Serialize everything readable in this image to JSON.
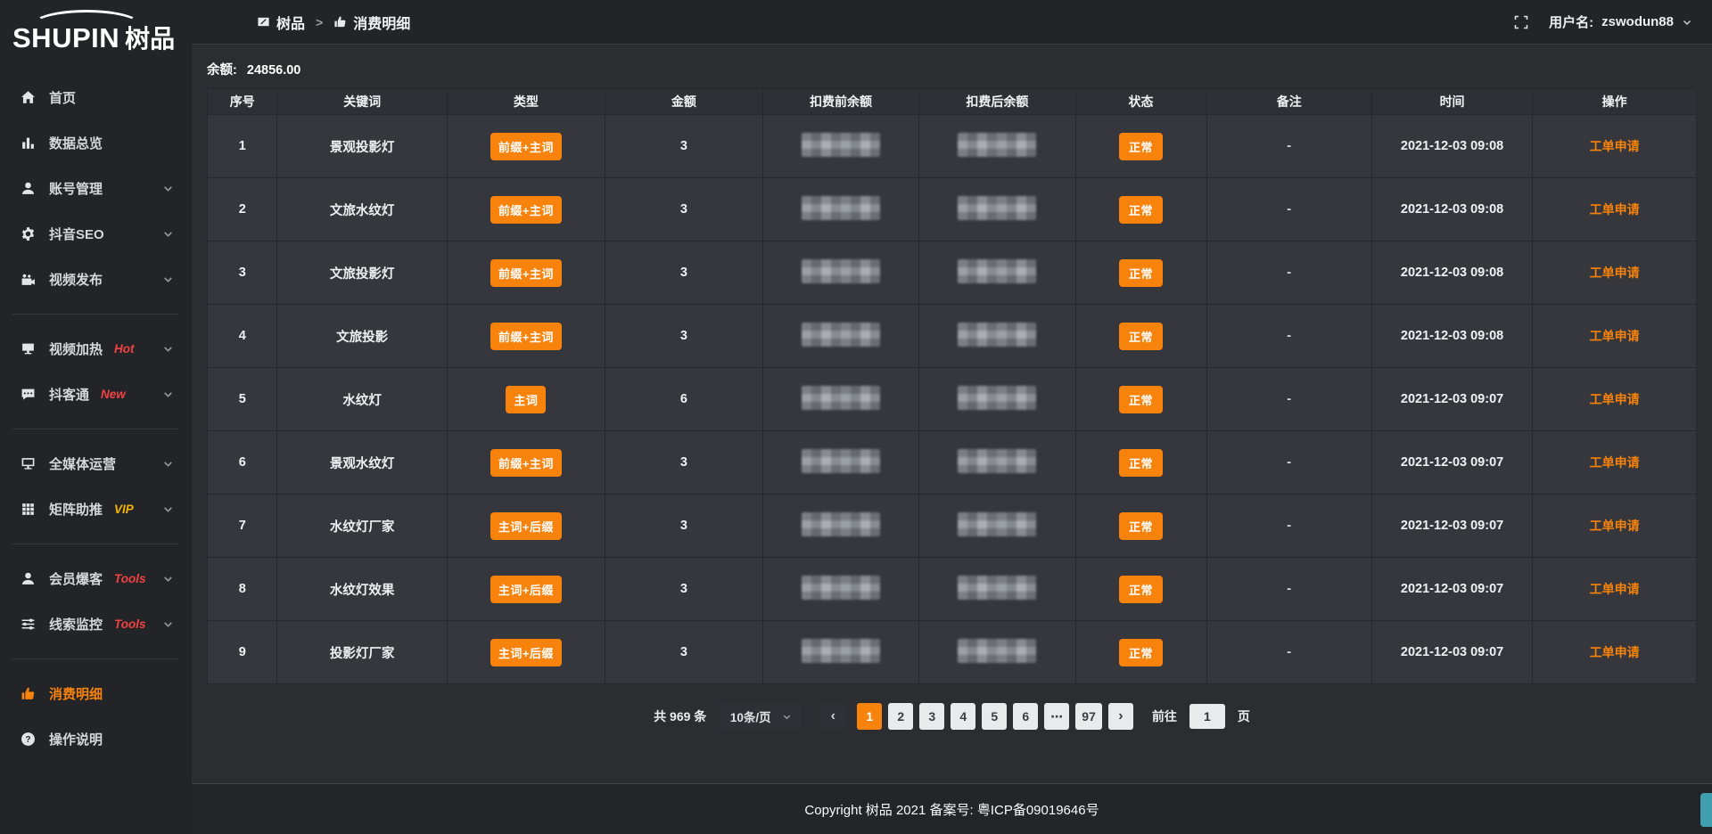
{
  "sidebar": {
    "logo_en": "SHUPIN",
    "logo_cn": "树品",
    "items": [
      {
        "id": "home",
        "icon": "home",
        "label": "首页"
      },
      {
        "id": "data-overview",
        "icon": "bar-chart",
        "label": "数据总览"
      },
      {
        "id": "account-management",
        "icon": "user",
        "label": "账号管理",
        "chevron": true
      },
      {
        "id": "douyin-seo",
        "icon": "gear",
        "label": "抖音SEO",
        "chevron": true
      },
      {
        "id": "video-publish",
        "icon": "video-camera",
        "label": "视频发布",
        "chevron": true
      },
      {
        "divider": true
      },
      {
        "id": "video-heat",
        "icon": "screen",
        "label": "视频加热",
        "badge": "Hot",
        "badge_color": "#f24242",
        "chevron": true
      },
      {
        "id": "douketong",
        "icon": "chat",
        "label": "抖客通",
        "badge": "New",
        "badge_color": "#f24242",
        "chevron": true
      },
      {
        "divider": true
      },
      {
        "id": "media-operation",
        "icon": "monitor",
        "label": "全媒体运营",
        "chevron": true
      },
      {
        "id": "matrix-boost",
        "icon": "grid",
        "label": "矩阵助推",
        "badge": "VIP",
        "badge_color": "#f7b500",
        "chevron": true
      },
      {
        "divider": true
      },
      {
        "id": "member-leads",
        "icon": "user-solid",
        "label": "会员爆客",
        "badge": "Tools",
        "badge_color": "#f24242",
        "chevron": true
      },
      {
        "id": "clue-monitor",
        "icon": "sliders",
        "label": "线索监控",
        "badge": "Tools",
        "badge_color": "#f24242",
        "chevron": true
      },
      {
        "divider": true
      },
      {
        "id": "consumption-details",
        "icon": "thumbs-up",
        "label": "消费明细",
        "active": true
      },
      {
        "id": "instructions",
        "icon": "question",
        "label": "操作说明"
      }
    ]
  },
  "topbar": {
    "breadcrumb": [
      "树品",
      "消费明细"
    ],
    "separator": ">",
    "username_label": "用户名:",
    "username": "zswodun88"
  },
  "balance": {
    "label": "余额:",
    "value": "24856.00"
  },
  "table": {
    "columns": [
      "序号",
      "关键词",
      "类型",
      "金额",
      "扣费前余额",
      "扣费后余额",
      "状态",
      "备注",
      "时间",
      "操作"
    ],
    "rows": [
      {
        "seq": "1",
        "keyword": "景观投影灯",
        "type": "前缀+主词",
        "amount": "3",
        "status": "正常",
        "remark": "-",
        "time": "2021-12-03 09:08",
        "action": "工单申请"
      },
      {
        "seq": "2",
        "keyword": "文旅水纹灯",
        "type": "前缀+主词",
        "amount": "3",
        "status": "正常",
        "remark": "-",
        "time": "2021-12-03 09:08",
        "action": "工单申请"
      },
      {
        "seq": "3",
        "keyword": "文旅投影灯",
        "type": "前缀+主词",
        "amount": "3",
        "status": "正常",
        "remark": "-",
        "time": "2021-12-03 09:08",
        "action": "工单申请"
      },
      {
        "seq": "4",
        "keyword": "文旅投影",
        "type": "前缀+主词",
        "amount": "3",
        "status": "正常",
        "remark": "-",
        "time": "2021-12-03 09:08",
        "action": "工单申请"
      },
      {
        "seq": "5",
        "keyword": "水纹灯",
        "type": "主词",
        "amount": "6",
        "status": "正常",
        "remark": "-",
        "time": "2021-12-03 09:07",
        "action": "工单申请"
      },
      {
        "seq": "6",
        "keyword": "景观水纹灯",
        "type": "前缀+主词",
        "amount": "3",
        "status": "正常",
        "remark": "-",
        "time": "2021-12-03 09:07",
        "action": "工单申请"
      },
      {
        "seq": "7",
        "keyword": "水纹灯厂家",
        "type": "主词+后缀",
        "amount": "3",
        "status": "正常",
        "remark": "-",
        "time": "2021-12-03 09:07",
        "action": "工单申请"
      },
      {
        "seq": "8",
        "keyword": "水纹灯效果",
        "type": "主词+后缀",
        "amount": "3",
        "status": "正常",
        "remark": "-",
        "time": "2021-12-03 09:07",
        "action": "工单申请"
      },
      {
        "seq": "9",
        "keyword": "投影灯厂家",
        "type": "主词+后缀",
        "amount": "3",
        "status": "正常",
        "remark": "-",
        "time": "2021-12-03 09:07",
        "action": "工单申请"
      }
    ]
  },
  "pagination": {
    "total": "共 969 条",
    "page_size": "10条/页",
    "prev_icon": "‹",
    "next_icon": "›",
    "pages": [
      "1",
      "2",
      "3",
      "4",
      "5",
      "6",
      "⋯",
      "97"
    ],
    "active_page": "1",
    "goto_label": "前往",
    "goto_value": "1",
    "goto_suffix": "页"
  },
  "footer": {
    "copyright": "Copyright 树品 2021 备案号: 粤ICP备09019646号"
  }
}
